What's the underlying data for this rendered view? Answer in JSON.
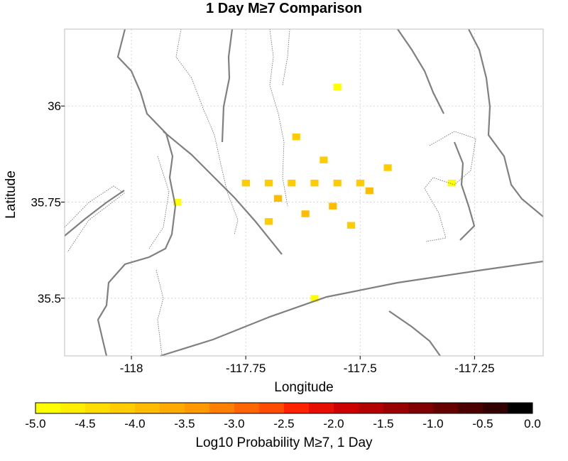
{
  "chart_data": {
    "type": "heatmap",
    "title": "1 Day M≥7 Comparison",
    "xlabel": "Longitude",
    "ylabel": "Latitude",
    "xlim": [
      -118.146,
      -117.1
    ],
    "ylim": [
      35.35,
      36.2
    ],
    "x_ticks": [
      -118,
      -117.75,
      -117.5,
      -117.25
    ],
    "y_ticks": [
      35.5,
      35.75,
      36
    ],
    "x_tick_labels": [
      "-118",
      "-117.75",
      "-117.5",
      "-117.25"
    ],
    "y_tick_labels": [
      "35.5",
      "35.75",
      "36"
    ],
    "grid": true,
    "cell_size_deg": 0.0167,
    "cells": [
      {
        "lon": -117.75,
        "lat": 35.8,
        "log_prob": -4.1
      },
      {
        "lon": -117.7,
        "lat": 35.8,
        "log_prob": -4.2
      },
      {
        "lon": -117.65,
        "lat": 35.8,
        "log_prob": -4.1
      },
      {
        "lon": -117.6,
        "lat": 35.8,
        "log_prob": -4.2
      },
      {
        "lon": -117.55,
        "lat": 35.8,
        "log_prob": -4.1
      },
      {
        "lon": -117.5,
        "lat": 35.8,
        "log_prob": -4.2
      },
      {
        "lon": -117.62,
        "lat": 35.72,
        "log_prob": -4.0
      },
      {
        "lon": -117.56,
        "lat": 35.74,
        "log_prob": -4.0
      },
      {
        "lon": -117.68,
        "lat": 35.76,
        "log_prob": -4.0
      },
      {
        "lon": -117.48,
        "lat": 35.78,
        "log_prob": -4.0
      },
      {
        "lon": -117.58,
        "lat": 35.86,
        "log_prob": -4.1
      },
      {
        "lon": -117.52,
        "lat": 35.69,
        "log_prob": -4.1
      },
      {
        "lon": -117.7,
        "lat": 35.7,
        "log_prob": -4.2
      },
      {
        "lon": -117.44,
        "lat": 35.84,
        "log_prob": -4.1
      },
      {
        "lon": -117.64,
        "lat": 35.92,
        "log_prob": -4.2
      },
      {
        "lon": -117.9,
        "lat": 35.75,
        "log_prob": -4.8
      },
      {
        "lon": -117.3,
        "lat": 35.8,
        "log_prob": -4.8
      },
      {
        "lon": -117.6,
        "lat": 35.5,
        "log_prob": -4.8
      },
      {
        "lon": -117.55,
        "lat": 36.05,
        "log_prob": -4.8
      }
    ],
    "scale": {
      "label": "Log10 Probability M≥7, 1 Day",
      "min": -5.0,
      "max": 0.0,
      "steps": 20,
      "tick_labels": [
        "-5.0",
        "-4.5",
        "-4.0",
        "-3.5",
        "-3.0",
        "-2.5",
        "-2.0",
        "-1.5",
        "-1.0",
        "-0.5",
        "0.0"
      ]
    },
    "colors": {
      "frame": "#bfbfbf",
      "grid": "#cccccc",
      "faults": "#808080",
      "colorbar": [
        "#ffff00",
        "#ffee00",
        "#ffdd00",
        "#ffcc00",
        "#ffbb00",
        "#ffaa00",
        "#ff9900",
        "#ff8000",
        "#ff6600",
        "#ff4d00",
        "#ff2200",
        "#e60e00",
        "#cc0000",
        "#b30000",
        "#990000",
        "#800000",
        "#660000",
        "#4d0000",
        "#330000",
        "#000000"
      ]
    }
  }
}
